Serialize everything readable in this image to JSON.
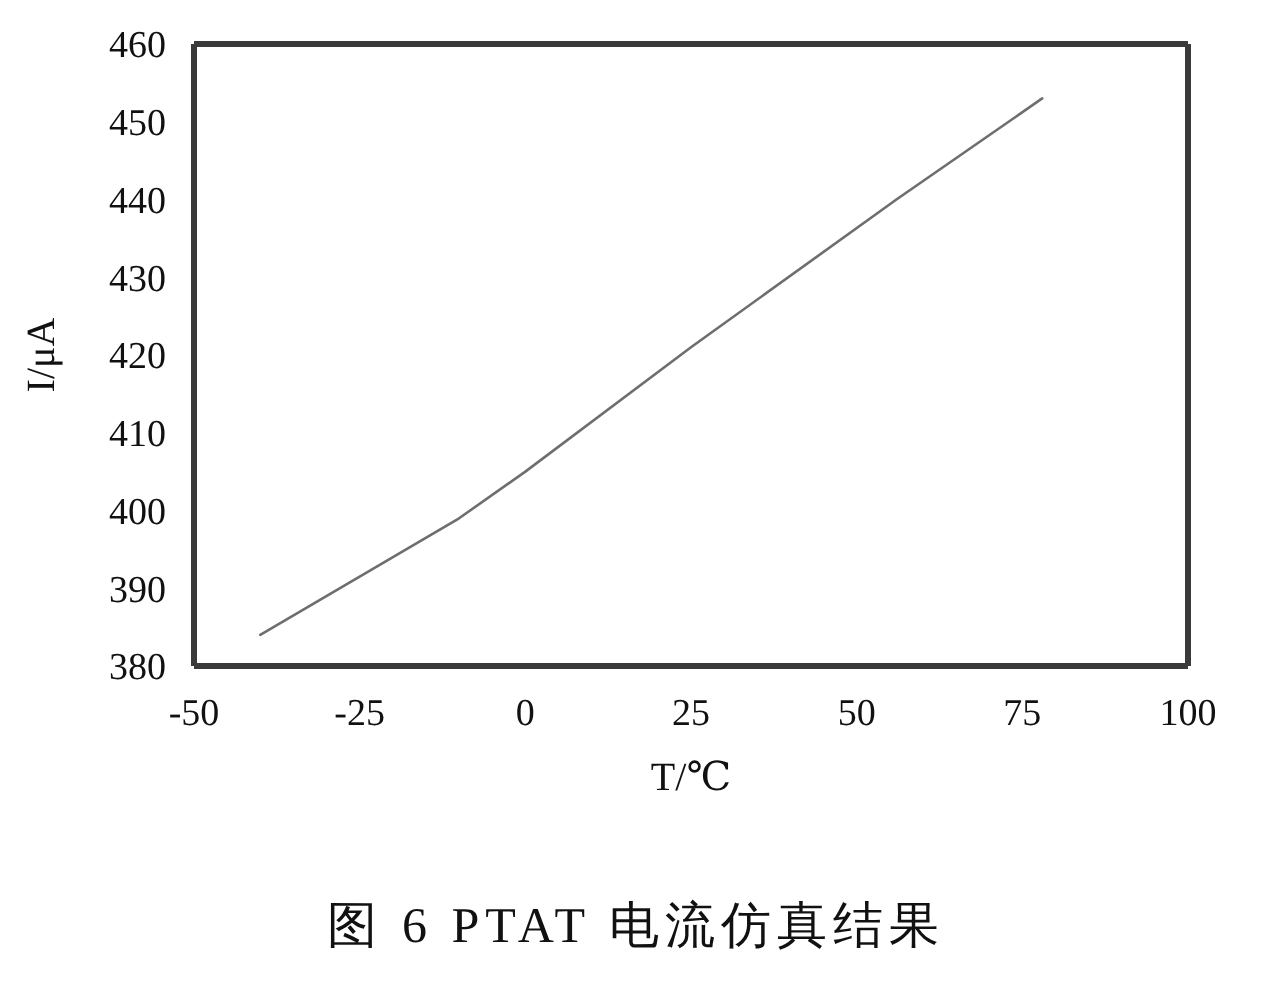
{
  "chart_data": {
    "type": "line",
    "title": "图 6 PTAT 电流仿真结果",
    "xlabel": "T/℃",
    "ylabel": "I/μA",
    "x": [
      -40,
      -10,
      0,
      25,
      56,
      78
    ],
    "values": [
      384,
      399,
      405,
      421,
      440,
      453
    ],
    "color": "#6e6e6e",
    "xlim": [
      -50,
      100
    ],
    "xticks": [
      -50,
      -25,
      0,
      25,
      50,
      75,
      100
    ],
    "ylim": [
      380,
      460
    ],
    "yticks": [
      380,
      390,
      400,
      410,
      420,
      430,
      440,
      450,
      460
    ],
    "marker": "none",
    "line_style": "solid"
  }
}
